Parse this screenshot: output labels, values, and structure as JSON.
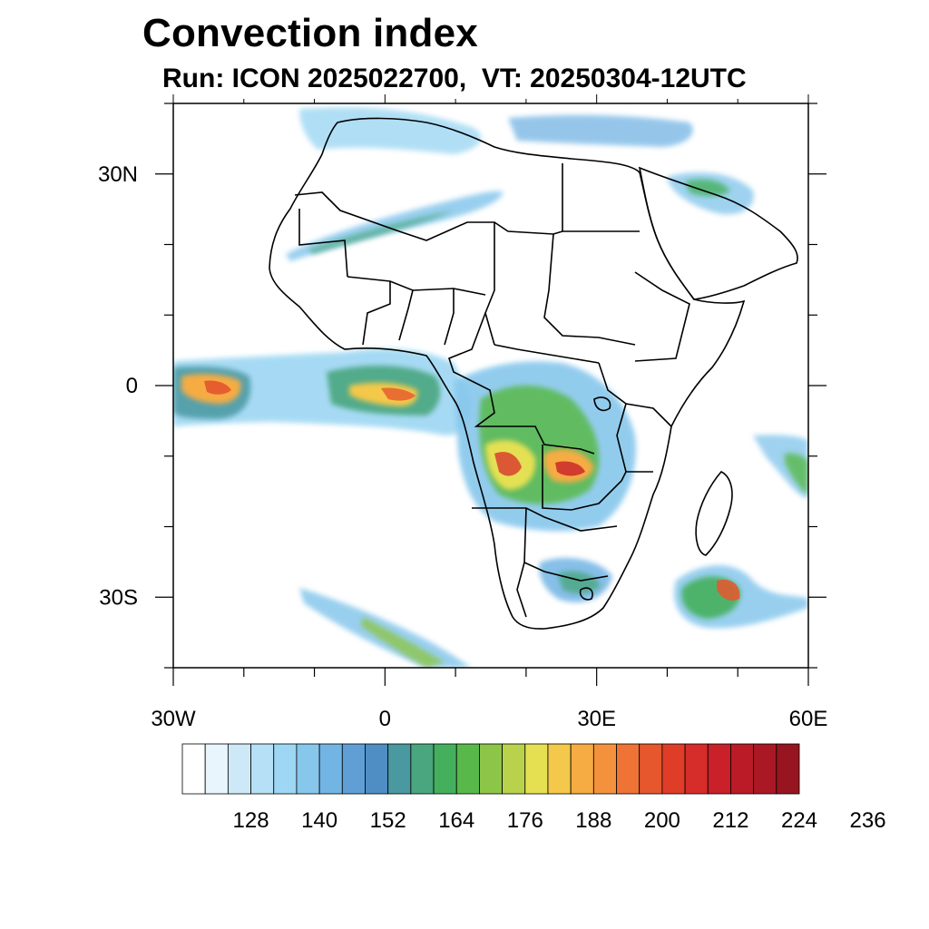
{
  "title": "Convection index",
  "subtitle": "Run: ICON 2025022700,  VT: 20250304-12UTC",
  "map": {
    "x_ticks": [
      {
        "lon": -30,
        "label": "30W"
      },
      {
        "lon": 0,
        "label": "0"
      },
      {
        "lon": 30,
        "label": "30E"
      },
      {
        "lon": 60,
        "label": "60E"
      }
    ],
    "y_ticks": [
      {
        "lat": 30,
        "label": "30N"
      },
      {
        "lat": 0,
        "label": "0"
      },
      {
        "lat": -30,
        "label": "30S"
      }
    ],
    "lon_range": [
      -30,
      60
    ],
    "lat_range": [
      -40,
      40
    ]
  },
  "colorbar": {
    "colors": [
      "#ffffff",
      "#e8f5fc",
      "#cde9f7",
      "#b6e0f5",
      "#9dd7f3",
      "#87c7ec",
      "#72b4e4",
      "#5f9fd6",
      "#4e8ec5",
      "#4a98a0",
      "#49a67f",
      "#44b05d",
      "#58b94a",
      "#8dc548",
      "#b9d24c",
      "#e5e052",
      "#f4c84a",
      "#f6ac43",
      "#f4913d",
      "#ee7334",
      "#e6572d",
      "#df3d28",
      "#d62c2a",
      "#c92029",
      "#ba1b27",
      "#a91824",
      "#971520"
    ],
    "labels": [
      "128",
      "140",
      "152",
      "164",
      "176",
      "188",
      "200",
      "212",
      "224",
      "236"
    ]
  }
}
